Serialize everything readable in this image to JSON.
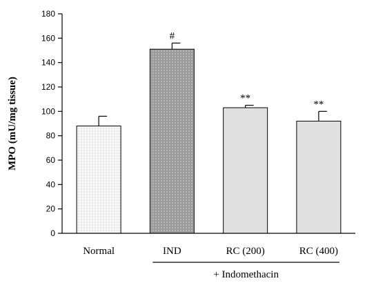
{
  "chart_data": {
    "type": "bar",
    "ylabel": "MPO (mU/mg tissue)",
    "ylim": [
      0,
      180
    ],
    "yticks": [
      0,
      20,
      40,
      60,
      80,
      100,
      120,
      140,
      160,
      180
    ],
    "categories": [
      "Normal",
      "IND",
      "RC (200)",
      "RC (400)"
    ],
    "values": [
      88,
      151,
      103,
      92
    ],
    "errors": [
      8,
      5,
      2,
      8
    ],
    "annotations": [
      "",
      "#",
      "**",
      "**"
    ],
    "colors": [
      "#f4f4f4",
      "#a9a9a9",
      "#e0e0e0",
      "#e0e0e0"
    ],
    "group_label": "+ Indomethacin",
    "group_span": [
      "IND",
      "RC (400)"
    ]
  }
}
